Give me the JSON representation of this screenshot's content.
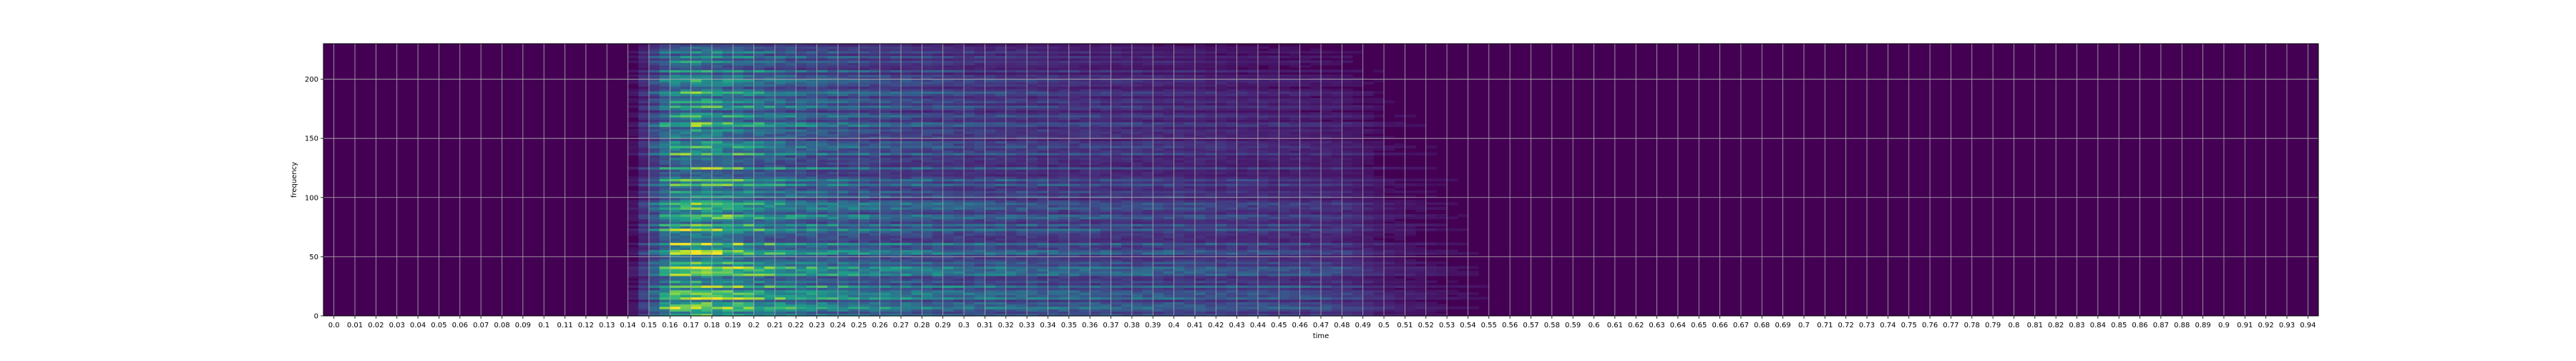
{
  "chart_data": {
    "type": "heatmap",
    "title": "",
    "xlabel": "time",
    "ylabel": "frequency",
    "xlim": [
      -0.005,
      0.945
    ],
    "ylim": [
      0,
      230
    ],
    "grid": true,
    "colormap": "viridis",
    "x_ticks": [
      "0.0",
      "0.01",
      "0.02",
      "0.03",
      "0.04",
      "0.05",
      "0.06",
      "0.07",
      "0.08",
      "0.09",
      "0.1",
      "0.11",
      "0.12",
      "0.13",
      "0.14",
      "0.15",
      "0.16",
      "0.17",
      "0.18",
      "0.19",
      "0.2",
      "0.21",
      "0.22",
      "0.23",
      "0.24",
      "0.25",
      "0.26",
      "0.27",
      "0.28",
      "0.29",
      "0.3",
      "0.31",
      "0.32",
      "0.33",
      "0.34",
      "0.35",
      "0.36",
      "0.37",
      "0.38",
      "0.39",
      "0.4",
      "0.41",
      "0.42",
      "0.43",
      "0.44",
      "0.45",
      "0.46",
      "0.47",
      "0.48",
      "0.49",
      "0.5",
      "0.51",
      "0.52",
      "0.53",
      "0.54",
      "0.55",
      "0.56",
      "0.57",
      "0.58",
      "0.59",
      "0.6",
      "0.61",
      "0.62",
      "0.63",
      "0.64",
      "0.65",
      "0.66",
      "0.67",
      "0.68",
      "0.69",
      "0.7",
      "0.71",
      "0.72",
      "0.73",
      "0.74",
      "0.75",
      "0.76",
      "0.77",
      "0.78",
      "0.79",
      "0.8",
      "0.81",
      "0.82",
      "0.83",
      "0.84",
      "0.85",
      "0.86",
      "0.87",
      "0.88",
      "0.89",
      "0.9",
      "0.91",
      "0.92",
      "0.93",
      "0.94"
    ],
    "y_ticks": [
      0,
      50,
      100,
      150,
      200
    ],
    "energy_profile": {
      "time": [
        0.0,
        0.14,
        0.15,
        0.16,
        0.17,
        0.18,
        0.19,
        0.2,
        0.22,
        0.25,
        0.3,
        0.35,
        0.4,
        0.45,
        0.48,
        0.5,
        0.53,
        0.56,
        0.6,
        0.94
      ],
      "level": [
        0.0,
        0.0,
        0.35,
        0.85,
        1.0,
        0.97,
        0.88,
        0.78,
        0.66,
        0.56,
        0.47,
        0.42,
        0.38,
        0.33,
        0.28,
        0.14,
        0.07,
        0.02,
        0.0,
        0.0
      ]
    }
  }
}
